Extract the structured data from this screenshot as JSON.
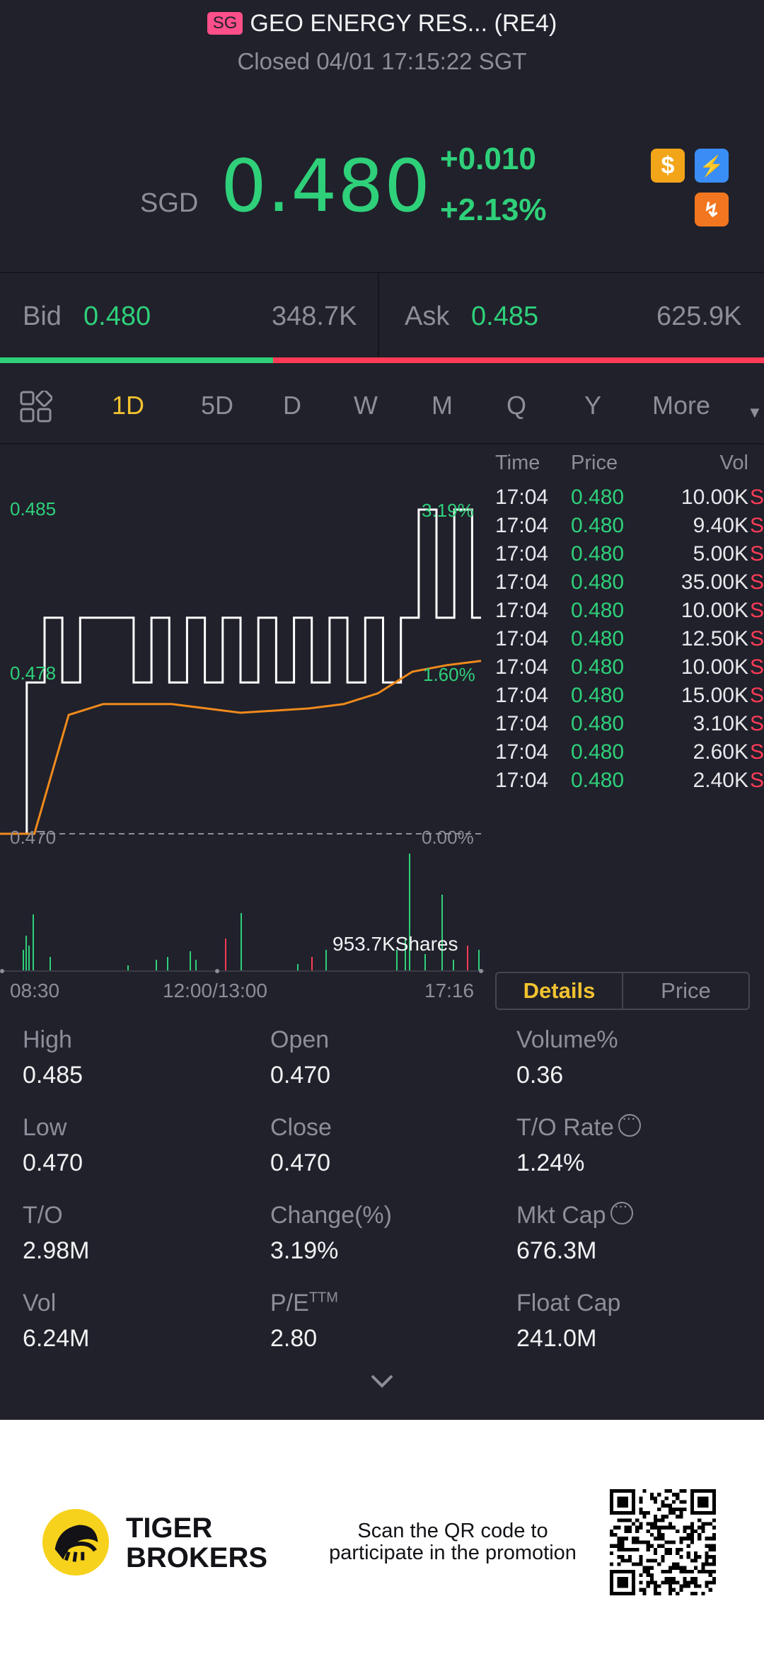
{
  "header": {
    "market_badge": "SG",
    "title": "GEO ENERGY RES... (RE4)",
    "status": "Closed 04/01 17:15:22 SGT",
    "currency": "SGD",
    "last_price": "0.480",
    "change_abs": "+0.010",
    "change_pct": "+2.13%",
    "icons": [
      "dollar-icon",
      "flash-icon",
      "trend-icon"
    ]
  },
  "bidask": {
    "bid_label": "Bid",
    "bid_price": "0.480",
    "bid_size": "348.7K",
    "ask_label": "Ask",
    "ask_price": "0.485",
    "ask_size": "625.9K",
    "bid_share": 0.357
  },
  "tabs": {
    "items": [
      "1D",
      "5D",
      "D",
      "W",
      "M",
      "Q",
      "Y",
      "More"
    ],
    "active": "1D"
  },
  "chart": {
    "y_labels": {
      "high": "0.485",
      "mid": "0.478",
      "low": "0.470"
    },
    "pct_labels": {
      "high": "3.19%",
      "mid": "1.60%",
      "low": "0.00%"
    },
    "volume_label": "953.7KShares",
    "time_labels": [
      "08:30",
      "12:00/13:00",
      "17:16"
    ]
  },
  "chart_data": {
    "type": "line",
    "ylim": [
      0.47,
      0.485
    ],
    "series": [
      {
        "values": [
          0.47,
          0.47,
          0.477,
          0.48,
          0.477,
          0.48,
          0.48,
          0.48,
          0.477,
          0.48,
          0.477,
          0.48,
          0.477,
          0.48,
          0.477,
          0.48,
          0.477,
          0.48,
          0.477,
          0.48,
          0.477,
          0.48,
          0.477,
          0.48,
          0.485,
          0.48,
          0.485,
          0.48
        ]
      },
      {
        "values": [
          0.47,
          0.47,
          0.4755,
          0.476,
          0.476,
          0.476,
          0.4758,
          0.4756,
          0.4757,
          0.4758,
          0.476,
          0.4765,
          0.4775,
          0.4778,
          0.478
        ]
      }
    ]
  },
  "trades": {
    "headers": {
      "time": "Time",
      "price": "Price",
      "vol": "Vol"
    },
    "rows": [
      {
        "time": "17:04",
        "price": "0.480",
        "vol": "10.00K",
        "side": "S"
      },
      {
        "time": "17:04",
        "price": "0.480",
        "vol": "9.40K",
        "side": "S"
      },
      {
        "time": "17:04",
        "price": "0.480",
        "vol": "5.00K",
        "side": "S"
      },
      {
        "time": "17:04",
        "price": "0.480",
        "vol": "35.00K",
        "side": "S"
      },
      {
        "time": "17:04",
        "price": "0.480",
        "vol": "10.00K",
        "side": "S"
      },
      {
        "time": "17:04",
        "price": "0.480",
        "vol": "12.50K",
        "side": "S"
      },
      {
        "time": "17:04",
        "price": "0.480",
        "vol": "10.00K",
        "side": "S"
      },
      {
        "time": "17:04",
        "price": "0.480",
        "vol": "15.00K",
        "side": "S"
      },
      {
        "time": "17:04",
        "price": "0.480",
        "vol": "3.10K",
        "side": "S"
      },
      {
        "time": "17:04",
        "price": "0.480",
        "vol": "2.60K",
        "side": "S"
      },
      {
        "time": "17:04",
        "price": "0.480",
        "vol": "2.40K",
        "side": "S"
      }
    ],
    "segments": [
      "Details",
      "Price"
    ]
  },
  "stats": [
    {
      "label": "High",
      "value": "0.485"
    },
    {
      "label": "Open",
      "value": "0.470"
    },
    {
      "label": "Volume%",
      "value": "0.36"
    },
    {
      "label": "Low",
      "value": "0.470"
    },
    {
      "label": "Close",
      "value": "0.470"
    },
    {
      "label": "T/O Rate",
      "value": "1.24%"
    },
    {
      "label": "T/O",
      "value": "2.98M"
    },
    {
      "label": "Change(%)",
      "value": "3.19%"
    },
    {
      "label": "Mkt Cap",
      "value": "676.3M"
    },
    {
      "label": "Vol",
      "value": "6.24M"
    },
    {
      "label": "P/E",
      "value": "2.80"
    },
    {
      "label": "Float Cap",
      "value": "241.0M"
    }
  ],
  "pe_superscript": "TTM",
  "promo": {
    "brand_line1": "TIGER",
    "brand_line2": "BROKERS",
    "text_line1": "Scan the QR code to",
    "text_line2": "participate in the promotion"
  },
  "colors": {
    "up": "#2fd07a",
    "down": "#ff3b56",
    "accent": "#f2c230",
    "bg": "#20212b"
  }
}
